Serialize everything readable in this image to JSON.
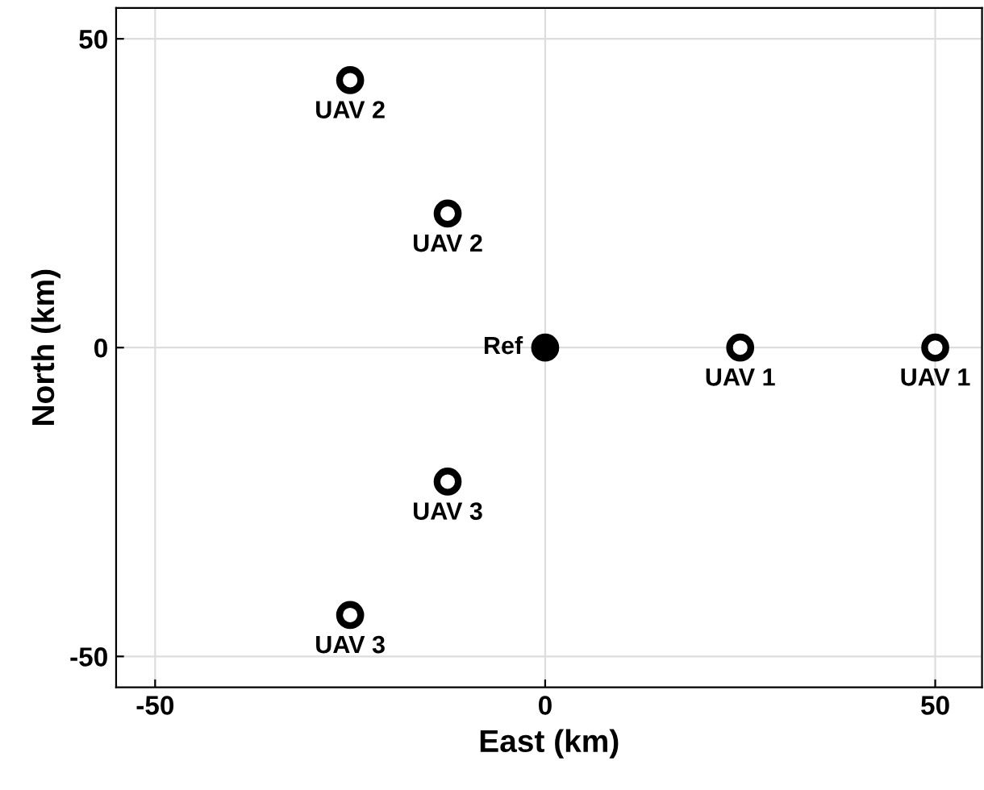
{
  "chart_data": {
    "type": "scatter",
    "xlabel": "East (km)",
    "ylabel": "North (km)",
    "xlim": [
      -55,
      56
    ],
    "ylim": [
      -55,
      55
    ],
    "xticks": [
      -50,
      0,
      50
    ],
    "yticks": [
      -50,
      0,
      50
    ],
    "grid": true,
    "marker": "circle",
    "legend": false,
    "series": [
      {
        "color": "#000000",
        "x": [
          -25,
          -12.5,
          25,
          50,
          -12.5,
          -25
        ],
        "values": [
          43.3,
          21.7,
          0,
          0,
          -21.7,
          -43.3
        ]
      },
      {
        "color": "#000000",
        "x": [
          0
        ],
        "values": [
          0
        ]
      }
    ],
    "annotations": [
      {
        "text": "UAV 2",
        "x": -25,
        "y": 43.3
      },
      {
        "text": "UAV 2",
        "x": -12.5,
        "y": 21.7
      },
      {
        "text": "Ref",
        "x": 0,
        "y": 0
      },
      {
        "text": "UAV 1",
        "x": 25,
        "y": 0
      },
      {
        "text": "UAV 1",
        "x": 50,
        "y": 0
      },
      {
        "text": "UAV 3",
        "x": -12.5,
        "y": -21.7
      },
      {
        "text": "UAV 3",
        "x": -25,
        "y": -43.3
      }
    ]
  }
}
